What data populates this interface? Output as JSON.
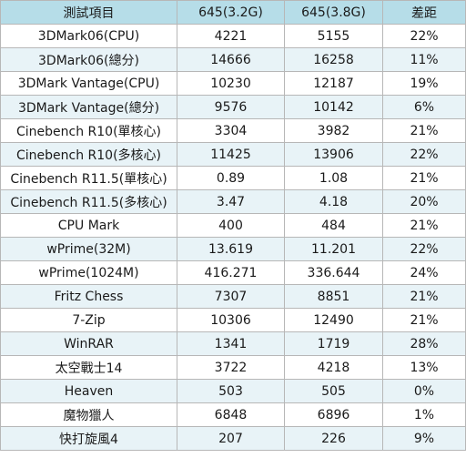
{
  "table": {
    "headers": [
      "測試項目",
      "645(3.2G)",
      "645(3.8G)",
      "差距"
    ],
    "rows": [
      [
        "3DMark06(CPU)",
        "4221",
        "5155",
        "22%"
      ],
      [
        "3DMark06(總分)",
        "14666",
        "16258",
        "11%"
      ],
      [
        "3DMark Vantage(CPU)",
        "10230",
        "12187",
        "19%"
      ],
      [
        "3DMark Vantage(總分)",
        "9576",
        "10142",
        "6%"
      ],
      [
        "Cinebench R10(單核心)",
        "3304",
        "3982",
        "21%"
      ],
      [
        "Cinebench R10(多核心)",
        "11425",
        "13906",
        "22%"
      ],
      [
        "Cinebench R11.5(單核心)",
        "0.89",
        "1.08",
        "21%"
      ],
      [
        "Cinebench R11.5(多核心)",
        "3.47",
        "4.18",
        "20%"
      ],
      [
        "CPU Mark",
        "400",
        "484",
        "21%"
      ],
      [
        "wPrime(32M)",
        "13.619",
        "11.201",
        "22%"
      ],
      [
        "wPrime(1024M)",
        "416.271",
        "336.644",
        "24%"
      ],
      [
        "Fritz Chess",
        "7307",
        "8851",
        "21%"
      ],
      [
        "7-Zip",
        "10306",
        "12490",
        "21%"
      ],
      [
        "WinRAR",
        "1341",
        "1719",
        "28%"
      ],
      [
        "太空戰士14",
        "3722",
        "4218",
        "13%"
      ],
      [
        "Heaven",
        "503",
        "505",
        "0%"
      ],
      [
        "魔物獵人",
        "6848",
        "6896",
        "1%"
      ],
      [
        "快打旋風4",
        "207",
        "226",
        "9%"
      ]
    ]
  }
}
